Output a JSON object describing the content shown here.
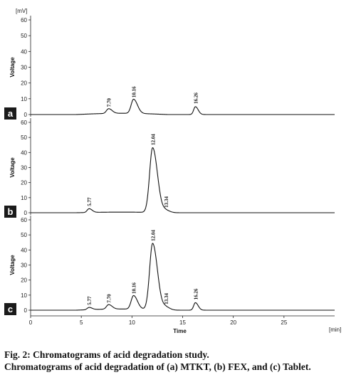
{
  "figure": {
    "y_unit": "[mV]",
    "x_unit": "[min]"
  },
  "caption": {
    "title": "Fig. 2: Chromatograms of acid degradation study.",
    "body": "Chromatograms of acid degradation of (a) MTKT, (b) FEX, and (c) Tablet."
  },
  "chart_data": [
    {
      "type": "line",
      "panel": "a",
      "ylabel": "Voltage",
      "xlabel": "",
      "yticks": [
        0,
        10,
        20,
        30,
        40,
        50,
        60
      ],
      "ylim": [
        0,
        65
      ],
      "xlim": [
        0,
        30
      ],
      "peaks": [
        {
          "label": "7.70",
          "rt": 7.7,
          "height": 3,
          "width": 0.25
        },
        {
          "label": "10.16",
          "rt": 10.16,
          "height": 9,
          "width": 0.28
        },
        {
          "label": "16.26",
          "rt": 16.26,
          "height": 5,
          "width": 0.2
        }
      ]
    },
    {
      "type": "line",
      "panel": "b",
      "ylabel": "Voltage",
      "xlabel": "",
      "yticks": [
        0,
        10,
        20,
        30,
        40,
        50,
        60
      ],
      "ylim": [
        0,
        65
      ],
      "xlim": [
        0,
        30
      ],
      "peaks": [
        {
          "label": "5.77",
          "rt": 5.77,
          "height": 2.5,
          "width": 0.22
        },
        {
          "label": "12.04",
          "rt": 12.04,
          "height": 43,
          "width": 0.35
        },
        {
          "label": "13.34",
          "rt": 13.34,
          "height": 1.5,
          "width": 0.3
        }
      ]
    },
    {
      "type": "line",
      "panel": "c",
      "ylabel": "Voltage",
      "xlabel": "Time",
      "yticks": [
        0,
        10,
        20,
        30,
        40,
        50,
        60
      ],
      "xticks": [
        0,
        5,
        10,
        15,
        20,
        25
      ],
      "ylim": [
        0,
        65
      ],
      "xlim": [
        0,
        30
      ],
      "peaks": [
        {
          "label": "5.77",
          "rt": 5.77,
          "height": 1.5,
          "width": 0.22
        },
        {
          "label": "7.70",
          "rt": 7.7,
          "height": 3,
          "width": 0.25
        },
        {
          "label": "10.16",
          "rt": 10.16,
          "height": 9,
          "width": 0.28
        },
        {
          "label": "12.04",
          "rt": 12.04,
          "height": 44,
          "width": 0.35
        },
        {
          "label": "13.34",
          "rt": 13.34,
          "height": 2,
          "width": 0.3
        },
        {
          "label": "16.26",
          "rt": 16.26,
          "height": 5,
          "width": 0.2
        }
      ]
    }
  ]
}
